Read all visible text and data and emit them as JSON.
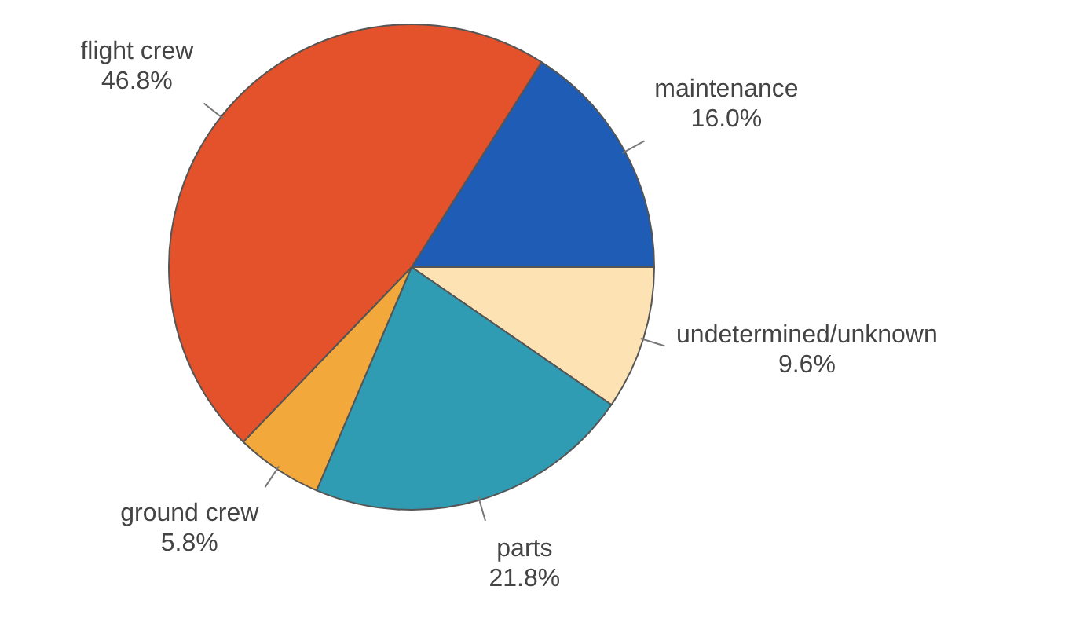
{
  "chart_data": {
    "type": "pie",
    "categories": [
      "maintenance",
      "undetermined/unknown",
      "parts",
      "ground crew",
      "flight crew"
    ],
    "values": [
      16.0,
      9.6,
      21.8,
      5.8,
      46.8
    ],
    "value_labels": [
      "16.0%",
      "9.6%",
      "21.8%",
      "5.8%",
      "46.8%"
    ],
    "colors": [
      "#1f5cb5",
      "#fde2b4",
      "#2f9cb3",
      "#f3a83c",
      "#e3522b"
    ],
    "legend": false
  }
}
